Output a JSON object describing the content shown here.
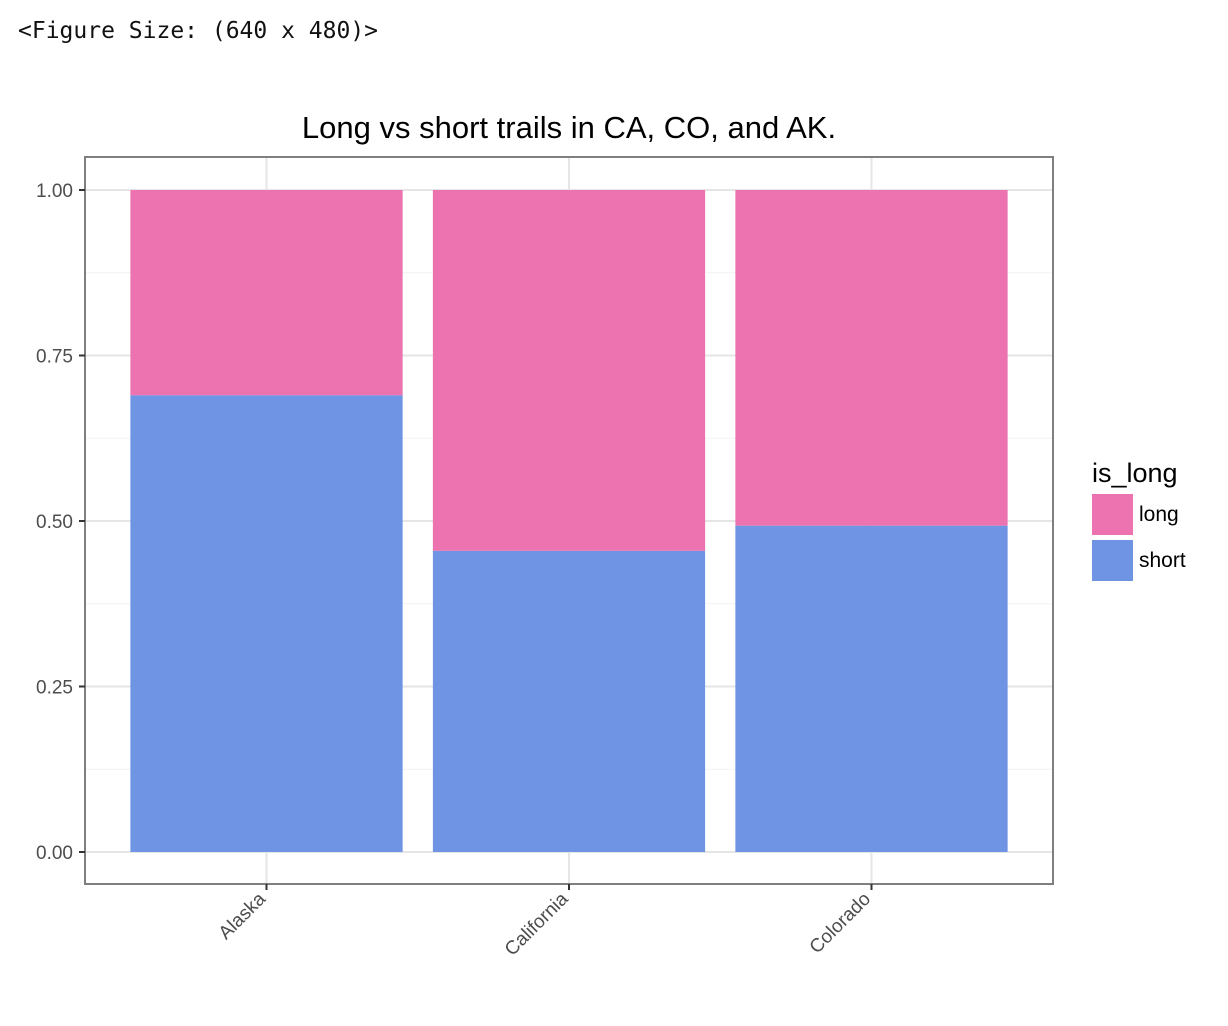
{
  "header": {
    "figure_size_text": "<Figure Size: (640 x 480)>"
  },
  "chart_data": {
    "type": "bar",
    "stacked": true,
    "title": "Long vs short trails in CA, CO, and AK.",
    "xlabel": "",
    "ylabel": "",
    "categories": [
      "Alaska",
      "California",
      "Colorado"
    ],
    "series": [
      {
        "name": "short",
        "color": "#6f94e3",
        "values": [
          0.69,
          0.455,
          0.493
        ]
      },
      {
        "name": "long",
        "color": "#ec72b0",
        "values": [
          0.31,
          0.545,
          0.507
        ]
      }
    ],
    "ylim": [
      0,
      1
    ],
    "yticks": [
      "0.00",
      "0.25",
      "0.50",
      "0.75",
      "1.00"
    ],
    "grid": true,
    "legend": {
      "title": "is_long",
      "position": "right",
      "entries": [
        {
          "label": "long",
          "color": "#ec72b0"
        },
        {
          "label": "short",
          "color": "#6f94e3"
        }
      ]
    }
  }
}
